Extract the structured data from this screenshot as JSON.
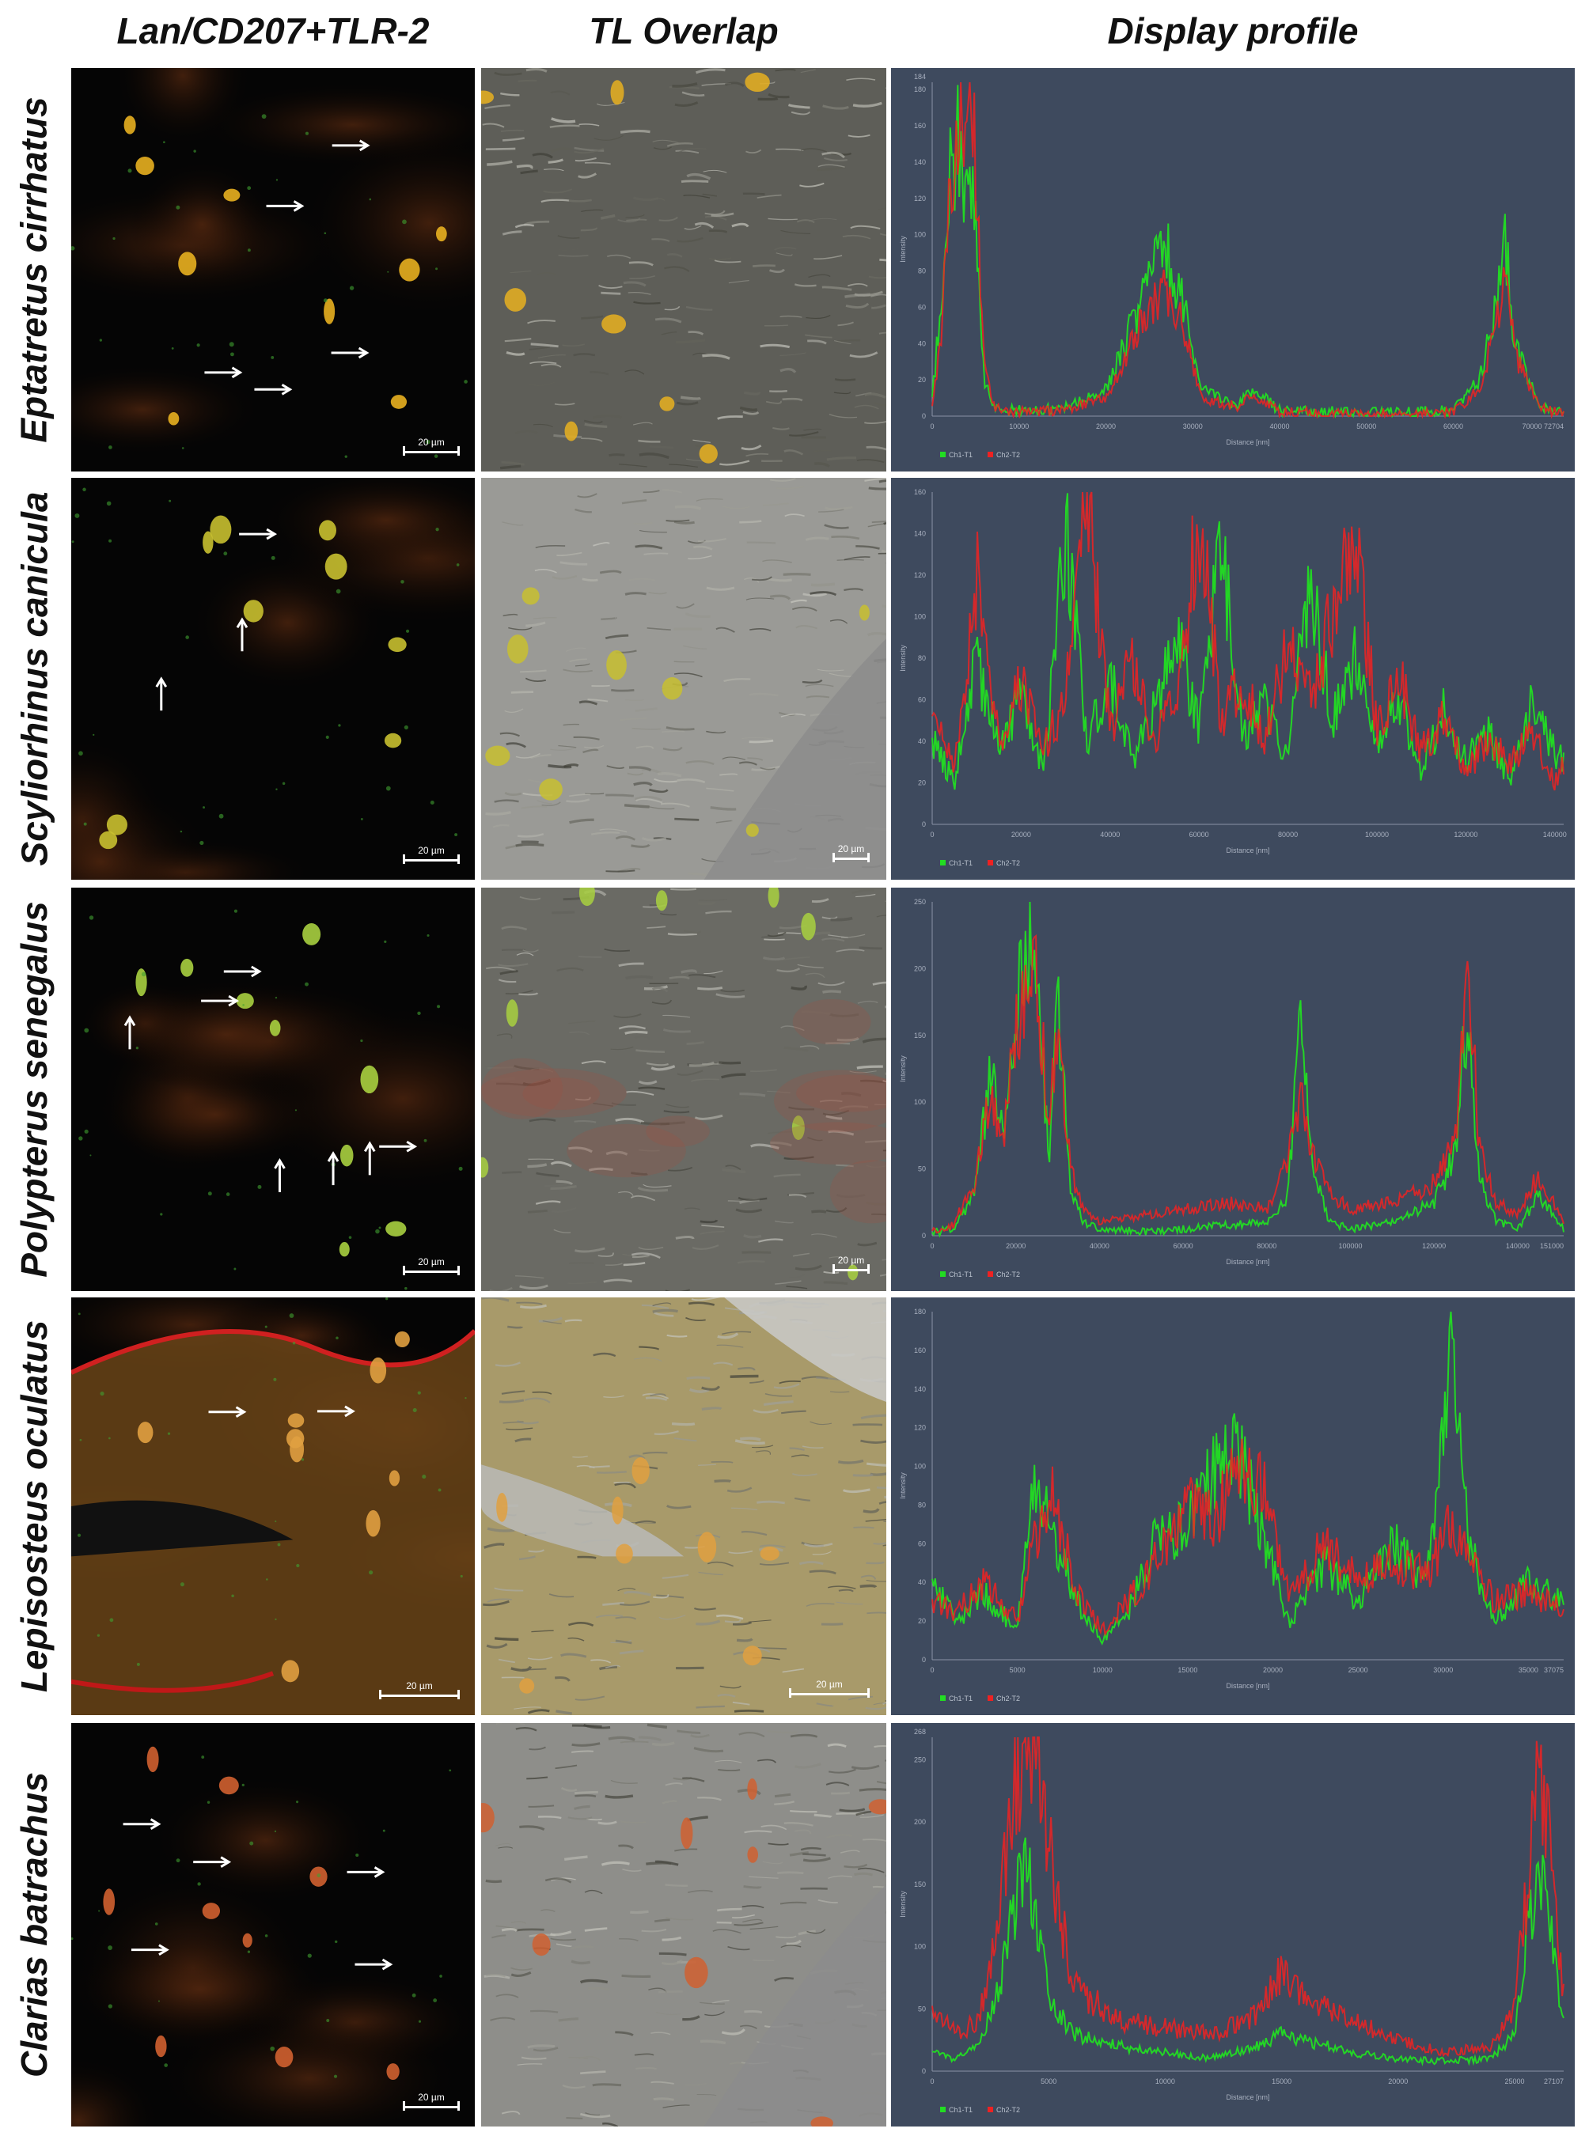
{
  "figure": {
    "column_headers": [
      "Lan/CD207+TLR-2",
      "TL Overlap",
      "Display profile"
    ],
    "rows": [
      {
        "species": "Eptatretus cirrhatus",
        "scale_label": "20 µm",
        "tl_scale_label": "",
        "fluor_hue": "#e8b020"
      },
      {
        "species": "Scyliorhinus canicula",
        "scale_label": "20 µm",
        "tl_scale_label": "20 µm",
        "fluor_hue": "#c8c030"
      },
      {
        "species": "Polypterus senegalus",
        "scale_label": "20 µm",
        "tl_scale_label": "20 µm",
        "fluor_hue": "#a8d040"
      },
      {
        "species": "Lepisosteus oculatus",
        "scale_label": "20 µm",
        "tl_scale_label": "20 µm",
        "fluor_hue": "#e0a040"
      },
      {
        "species": "Clarias batrachus",
        "scale_label": "20 µm",
        "tl_scale_label": "",
        "fluor_hue": "#d06030"
      }
    ]
  },
  "chart_data": [
    {
      "type": "line",
      "xlabel": "Distance [nm]",
      "ylabel": "Intensity",
      "xlim": [
        0,
        72704
      ],
      "ylim": [
        0,
        184
      ],
      "xticks": [
        0,
        10000,
        20000,
        30000,
        40000,
        50000,
        60000
      ],
      "xtick_end_label": "70000 72704",
      "yticks": [
        0,
        20,
        40,
        60,
        80,
        100,
        120,
        140,
        160,
        180
      ],
      "ytick_top_label": "184",
      "legend": [
        "Ch1-T1",
        "Ch2-T2"
      ],
      "series_colors": [
        "#22dd22",
        "#ee2222"
      ],
      "series": [
        {
          "name": "Ch1-T1",
          "x": [
            0,
            1000,
            2000,
            3000,
            4000,
            5000,
            6000,
            7000,
            10000,
            15000,
            20000,
            23000,
            25000,
            27000,
            29000,
            31000,
            35000,
            37000,
            40000,
            50000,
            60000,
            63000,
            65000,
            66000,
            67000,
            70000,
            72704
          ],
          "values": [
            10,
            60,
            140,
            150,
            120,
            110,
            20,
            5,
            3,
            4,
            15,
            50,
            80,
            90,
            60,
            15,
            5,
            15,
            3,
            2,
            3,
            20,
            60,
            95,
            40,
            5,
            2
          ]
        },
        {
          "name": "Ch2-T2",
          "x": [
            0,
            1000,
            2000,
            3000,
            4000,
            5000,
            6000,
            7000,
            10000,
            15000,
            20000,
            23000,
            25000,
            27000,
            29000,
            31000,
            35000,
            37000,
            40000,
            50000,
            60000,
            63000,
            65000,
            66000,
            67000,
            70000,
            72704
          ],
          "values": [
            5,
            40,
            120,
            165,
            180,
            140,
            30,
            5,
            2,
            3,
            10,
            40,
            60,
            70,
            50,
            10,
            5,
            12,
            2,
            1,
            2,
            15,
            50,
            85,
            35,
            4,
            1
          ]
        }
      ]
    },
    {
      "type": "line",
      "xlabel": "Distance [nm]",
      "ylabel": "Intensity",
      "xlim": [
        0,
        142000
      ],
      "ylim": [
        0,
        160
      ],
      "xticks": [
        0,
        20000,
        40000,
        60000,
        80000,
        100000,
        120000,
        140000
      ],
      "xtick_end_label": "",
      "yticks": [
        0,
        20,
        40,
        60,
        80,
        100,
        120,
        140,
        160
      ],
      "ytick_top_label": "",
      "legend": [
        "Ch1-T1",
        "Ch2-T2"
      ],
      "series_colors": [
        "#22dd22",
        "#ee2222"
      ],
      "series": [
        {
          "name": "Ch1-T1",
          "x": [
            0,
            5000,
            10000,
            15000,
            20000,
            25000,
            30000,
            35000,
            40000,
            45000,
            50000,
            55000,
            60000,
            65000,
            70000,
            75000,
            80000,
            85000,
            90000,
            95000,
            100000,
            105000,
            110000,
            115000,
            120000,
            125000,
            130000,
            135000,
            140000,
            142000
          ],
          "values": [
            40,
            20,
            80,
            35,
            60,
            25,
            140,
            40,
            70,
            30,
            55,
            90,
            45,
            135,
            40,
            60,
            30,
            120,
            50,
            80,
            35,
            60,
            25,
            55,
            30,
            45,
            20,
            60,
            35,
            30
          ]
        },
        {
          "name": "Ch2-T2",
          "x": [
            0,
            5000,
            10000,
            15000,
            20000,
            25000,
            30000,
            35000,
            40000,
            45000,
            50000,
            55000,
            60000,
            65000,
            70000,
            75000,
            80000,
            85000,
            90000,
            95000,
            100000,
            105000,
            110000,
            115000,
            120000,
            125000,
            130000,
            135000,
            140000,
            142000
          ],
          "values": [
            50,
            30,
            120,
            40,
            70,
            35,
            60,
            155,
            45,
            80,
            40,
            60,
            150,
            50,
            70,
            40,
            90,
            60,
            100,
            145,
            45,
            70,
            35,
            50,
            25,
            40,
            30,
            45,
            20,
            30
          ]
        }
      ]
    },
    {
      "type": "line",
      "xlabel": "Distance [nm]",
      "ylabel": "Intensity",
      "xlim": [
        0,
        151000
      ],
      "ylim": [
        0,
        250
      ],
      "xticks": [
        0,
        20000,
        40000,
        60000,
        80000,
        100000,
        120000,
        140000
      ],
      "xtick_end_label": "151000",
      "yticks": [
        0,
        50,
        100,
        150,
        200,
        250
      ],
      "ytick_top_label": "",
      "legend": [
        "Ch1-T1",
        "Ch2-T2"
      ],
      "series_colors": [
        "#22dd22",
        "#ee2222"
      ],
      "series": [
        {
          "name": "Ch1-T1",
          "x": [
            0,
            5000,
            10000,
            14000,
            17000,
            20000,
            22000,
            24000,
            26000,
            28000,
            30000,
            33000,
            36000,
            40000,
            50000,
            60000,
            70000,
            80000,
            85000,
            88000,
            91000,
            95000,
            100000,
            110000,
            120000,
            125000,
            128000,
            131000,
            135000,
            140000,
            145000,
            151000
          ],
          "values": [
            2,
            5,
            30,
            120,
            80,
            170,
            200,
            240,
            140,
            60,
            170,
            40,
            10,
            5,
            3,
            5,
            8,
            10,
            30,
            160,
            50,
            10,
            5,
            10,
            25,
            60,
            170,
            40,
            10,
            5,
            30,
            5
          ]
        },
        {
          "name": "Ch2-T2",
          "x": [
            0,
            5000,
            10000,
            14000,
            17000,
            20000,
            22000,
            24000,
            26000,
            28000,
            30000,
            33000,
            36000,
            40000,
            50000,
            60000,
            70000,
            80000,
            85000,
            88000,
            91000,
            95000,
            100000,
            110000,
            120000,
            125000,
            128000,
            131000,
            135000,
            140000,
            145000,
            151000
          ],
          "values": [
            3,
            8,
            40,
            110,
            70,
            150,
            180,
            200,
            160,
            90,
            150,
            50,
            20,
            10,
            15,
            20,
            25,
            20,
            60,
            110,
            60,
            30,
            20,
            25,
            40,
            70,
            210,
            60,
            25,
            15,
            45,
            10
          ]
        }
      ]
    },
    {
      "type": "line",
      "xlabel": "Distance [nm]",
      "ylabel": "Intensity",
      "xlim": [
        0,
        37075
      ],
      "ylim": [
        0,
        180
      ],
      "xticks": [
        0,
        5000,
        10000,
        15000,
        20000,
        25000,
        30000,
        35000
      ],
      "xtick_end_label": "37075",
      "yticks": [
        0,
        20,
        40,
        60,
        80,
        100,
        120,
        140,
        160,
        180
      ],
      "ytick_top_label": "",
      "legend": [
        "Ch1-T1",
        "Ch2-T2"
      ],
      "series_colors": [
        "#22dd22",
        "#ee2222"
      ],
      "series": [
        {
          "name": "Ch1-T1",
          "x": [
            0,
            1500,
            3000,
            5000,
            6000,
            7000,
            8500,
            10000,
            11500,
            13000,
            15000,
            16500,
            18000,
            19500,
            21000,
            23000,
            25000,
            27000,
            29000,
            30000,
            30500,
            31500,
            33000,
            35000,
            37075
          ],
          "values": [
            40,
            20,
            35,
            15,
            100,
            70,
            30,
            10,
            25,
            60,
            70,
            95,
            110,
            60,
            20,
            50,
            30,
            60,
            40,
            120,
            175,
            60,
            20,
            40,
            30
          ]
        },
        {
          "name": "Ch2-T2",
          "x": [
            0,
            1500,
            3000,
            5000,
            6000,
            7000,
            8500,
            10000,
            11500,
            13000,
            15000,
            16500,
            18000,
            19500,
            21000,
            23000,
            25000,
            27000,
            29000,
            30000,
            30500,
            31500,
            33000,
            35000,
            37075
          ],
          "values": [
            30,
            25,
            40,
            20,
            60,
            90,
            35,
            15,
            30,
            50,
            80,
            70,
            100,
            85,
            30,
            60,
            40,
            50,
            45,
            60,
            70,
            55,
            30,
            35,
            25
          ]
        }
      ]
    },
    {
      "type": "line",
      "xlabel": "Distance [nm]",
      "ylabel": "Intensity",
      "xlim": [
        0,
        27107
      ],
      "ylim": [
        0,
        268
      ],
      "xticks": [
        0,
        5000,
        10000,
        15000,
        20000,
        25000
      ],
      "xtick_end_label": "27107",
      "yticks": [
        0,
        50,
        100,
        150,
        200,
        250
      ],
      "ytick_top_label": "268",
      "legend": [
        "Ch1-T1",
        "Ch2-T2"
      ],
      "series_colors": [
        "#22dd22",
        "#ee2222"
      ],
      "series": [
        {
          "name": "Ch1-T1",
          "x": [
            0,
            1000,
            2000,
            3000,
            3500,
            4000,
            4500,
            5000,
            6000,
            8000,
            10000,
            12000,
            14000,
            15000,
            16000,
            18000,
            20000,
            22000,
            24000,
            25000,
            26000,
            26500,
            27107
          ],
          "values": [
            15,
            10,
            20,
            80,
            130,
            170,
            120,
            60,
            30,
            20,
            15,
            10,
            20,
            30,
            25,
            15,
            10,
            8,
            10,
            30,
            170,
            120,
            40
          ]
        },
        {
          "name": "Ch2-T2",
          "x": [
            0,
            1000,
            2000,
            3000,
            3500,
            4000,
            4500,
            5000,
            6000,
            8000,
            10000,
            12000,
            14000,
            15000,
            16000,
            18000,
            20000,
            22000,
            24000,
            25000,
            26000,
            26500,
            27107
          ],
          "values": [
            50,
            30,
            40,
            140,
            240,
            250,
            250,
            180,
            70,
            40,
            35,
            30,
            45,
            80,
            60,
            40,
            25,
            15,
            20,
            50,
            230,
            200,
            60
          ]
        }
      ]
    }
  ]
}
